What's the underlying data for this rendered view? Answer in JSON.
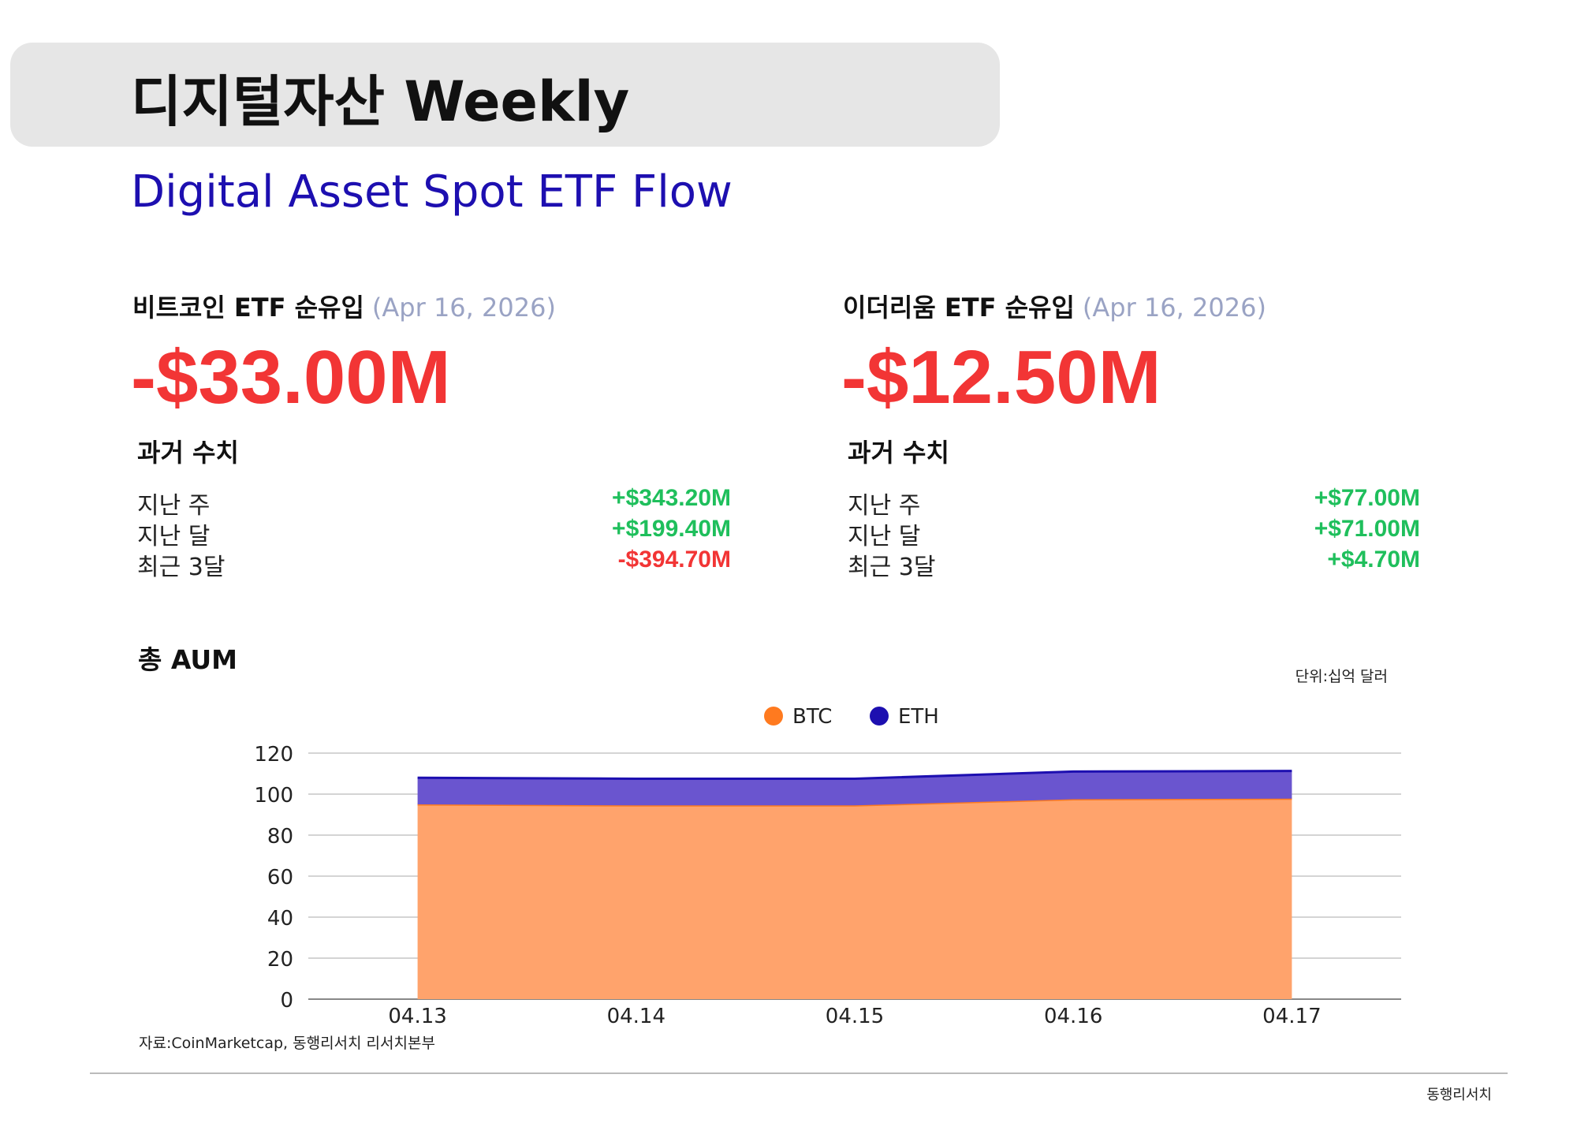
{
  "header": {
    "title": "디지털자산 Weekly",
    "subtitle": "Digital Asset Spot ETF Flow"
  },
  "panels": [
    {
      "title": "비트코인 ETF 순유입",
      "date": "(Apr 16, 2026)",
      "value": "-$33.00M",
      "history_title": "과거 수치",
      "history": [
        {
          "label": "지난 주",
          "value": "+$343.20M"
        },
        {
          "label": "지난 달",
          "value": "+$199.40M"
        },
        {
          "label": "최근 3달",
          "value": "-$394.70M"
        }
      ]
    },
    {
      "title": "이더리움 ETF 순유입",
      "date": "(Apr 16, 2026)",
      "value": "-$12.50M",
      "history_title": "과거 수치",
      "history": [
        {
          "label": "지난 주",
          "value": "+$77.00M"
        },
        {
          "label": "지난 달",
          "value": "+$71.00M"
        },
        {
          "label": "최근 3달",
          "value": "+$4.70M"
        }
      ]
    }
  ],
  "aum_title": "총 AUM",
  "unit": "단위:십억 달러",
  "source": "자료:CoinMarketcap, 동행리서치 리서치본부",
  "footer": "동행리서치",
  "chart_data": {
    "type": "stacked-area",
    "categories": [
      "04.13",
      "04.14",
      "04.15",
      "04.16",
      "04.17"
    ],
    "series": [
      {
        "name": "BTC",
        "color": "#ff7a1f",
        "values": [
          95,
          94.5,
          94.5,
          97.5,
          97.8
        ]
      },
      {
        "name": "ETH",
        "color": "#1d0fb0",
        "values": [
          13,
          13,
          13,
          13.5,
          13.5
        ]
      }
    ],
    "ylim": [
      0,
      120
    ],
    "yticks": [
      0,
      20,
      40,
      60,
      80,
      100,
      120
    ],
    "grid": true,
    "legend": "top"
  }
}
